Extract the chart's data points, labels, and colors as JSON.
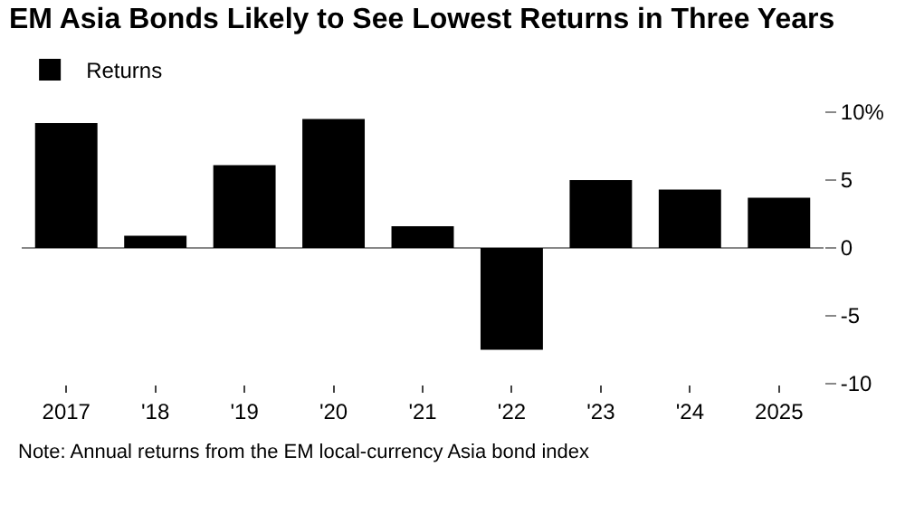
{
  "chart_data": {
    "type": "bar",
    "title": "EM Asia Bonds Likely to See Lowest Returns in Three Years",
    "categories": [
      "2017",
      "'18",
      "'19",
      "'20",
      "'21",
      "'22",
      "'23",
      "'24",
      "2025"
    ],
    "series": [
      {
        "name": "Returns",
        "color": "#000000",
        "values": [
          9.2,
          0.9,
          6.1,
          9.5,
          1.6,
          -7.5,
          5.0,
          4.3,
          3.7
        ]
      }
    ],
    "ylim": [
      -10,
      10
    ],
    "yticks": [
      {
        "value": 10,
        "label": "10%"
      },
      5,
      0,
      -5,
      -10
    ],
    "grid": false,
    "ref_lines": [
      {
        "axis": "y",
        "value": 0,
        "color": "#888888"
      }
    ],
    "legend": "top left",
    "annotations": [
      "Note: Annual returns from the EM local-currency Asia bond index"
    ]
  }
}
